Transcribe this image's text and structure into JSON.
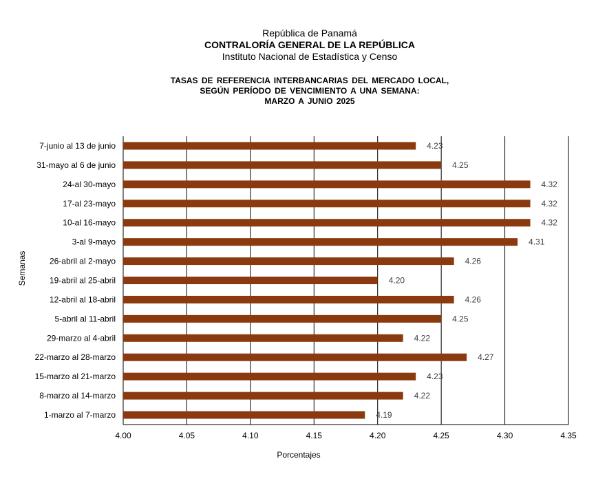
{
  "header": {
    "line1": "República de Panamá",
    "line2": "CONTRALORÍA GENERAL DE LA REPÚBLICA",
    "line3": "Instituto Nacional de Estadística y Censo"
  },
  "chart_data": {
    "type": "bar",
    "orientation": "horizontal",
    "title_lines": [
      "TASAS DE REFERENCIA INTERBANCARIAS DEL MERCADO LOCAL,",
      "SEGÚN PERÍODO DE VENCIMIENTO A UNA SEMANA:",
      "MARZO A JUNIO 2025"
    ],
    "xlabel": "Porcentajes",
    "ylabel": "Semanas",
    "xlim": [
      4.0,
      4.35
    ],
    "xticks": [
      "4.00",
      "4.05",
      "4.10",
      "4.15",
      "4.20",
      "4.25",
      "4.30",
      "4.35"
    ],
    "grid": "vertical",
    "bar_color": "#8B3A0F",
    "categories": [
      "7-junio al 13 de junio",
      "31-mayo al 6 de junio",
      "24-al 30-mayo",
      "17-al 23-mayo",
      "10-al 16-mayo",
      "3-al 9-mayo",
      "26-abril al 2-mayo",
      "19-abril al 25-abril",
      "12-abril al 18-abril",
      "5-abril al 11-abril",
      "29-marzo al 4-abril",
      "22-marzo al 28-marzo",
      "15-marzo al 21-marzo",
      "8-marzo al 14-marzo",
      "1-marzo al 7-marzo"
    ],
    "values": [
      4.23,
      4.25,
      4.32,
      4.32,
      4.32,
      4.31,
      4.26,
      4.2,
      4.26,
      4.25,
      4.22,
      4.27,
      4.23,
      4.22,
      4.19
    ],
    "value_labels": [
      "4.23",
      "4.25",
      "4.32",
      "4.32",
      "4.32",
      "4.31",
      "4.26",
      "4.20",
      "4.26",
      "4.25",
      "4.22",
      "4.27",
      "4.23",
      "4.22",
      "4.19"
    ]
  }
}
